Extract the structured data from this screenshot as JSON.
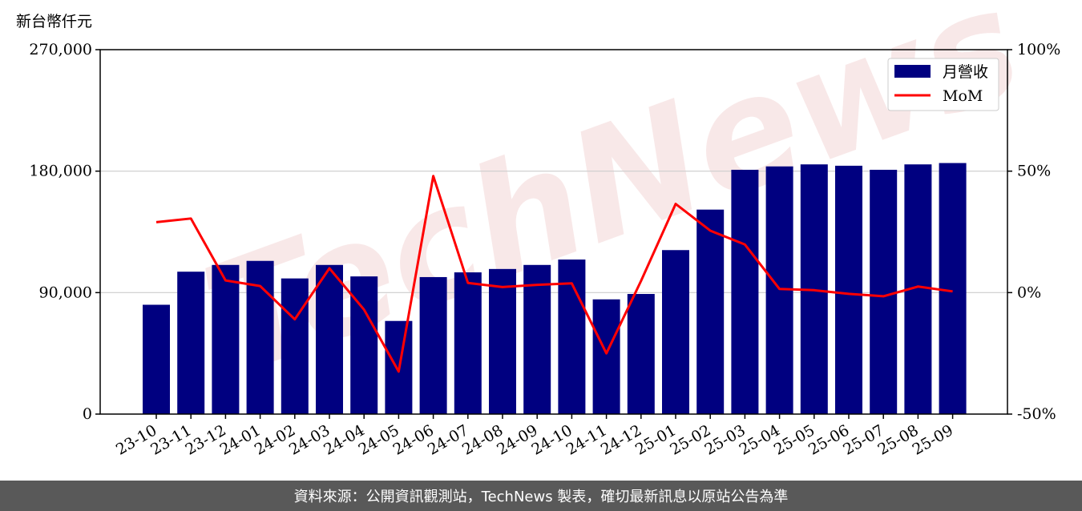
{
  "unit_label": "新台幣仟元",
  "watermark": "TechNews",
  "footer": "資料來源：公開資訊觀測站，TechNews 製表，確切最新訊息以原站公告為準",
  "colors": {
    "bar": "#000080",
    "line": "#ff0000",
    "grid": "#cccccc",
    "footer_bg": "#595959"
  },
  "chart_data": {
    "type": "bar+line",
    "categories": [
      "23-10",
      "23-11",
      "23-12",
      "24-01",
      "24-02",
      "24-03",
      "24-04",
      "24-05",
      "24-06",
      "24-07",
      "24-08",
      "24-09",
      "24-10",
      "24-11",
      "24-12",
      "25-01",
      "25-02",
      "25-03",
      "25-04",
      "25-05",
      "25-06",
      "25-07",
      "25-08",
      "25-09"
    ],
    "series": [
      {
        "name": "月營收",
        "type": "bar",
        "axis": "left",
        "values": [
          81000,
          105500,
          110500,
          113500,
          100500,
          110500,
          102000,
          69000,
          101500,
          105000,
          107500,
          110500,
          114500,
          85000,
          89000,
          121500,
          151500,
          181000,
          183500,
          185000,
          184000,
          181000,
          185000,
          186000
        ]
      },
      {
        "name": "MoM",
        "type": "line",
        "axis": "right",
        "values": [
          29,
          30.5,
          5,
          2.7,
          -11,
          10,
          -7,
          -32.5,
          48,
          4,
          2.3,
          3.2,
          3.8,
          -25,
          4.8,
          36.5,
          25.5,
          19.8,
          1.5,
          1,
          -0.5,
          -1.5,
          2.5,
          0.5
        ]
      }
    ],
    "yleft": {
      "lim": [
        0,
        270000
      ],
      "ticks": [
        "0",
        "90,000",
        "180,000",
        "270,000"
      ],
      "tick_values": [
        0,
        90000,
        180000,
        270000
      ]
    },
    "yright": {
      "lim": [
        -50,
        100
      ],
      "ticks": [
        "-50%",
        "0%",
        "50%",
        "100%"
      ],
      "tick_values": [
        -50,
        0,
        50,
        100
      ]
    },
    "grid": "horizontal",
    "legend_position": "top-right"
  }
}
